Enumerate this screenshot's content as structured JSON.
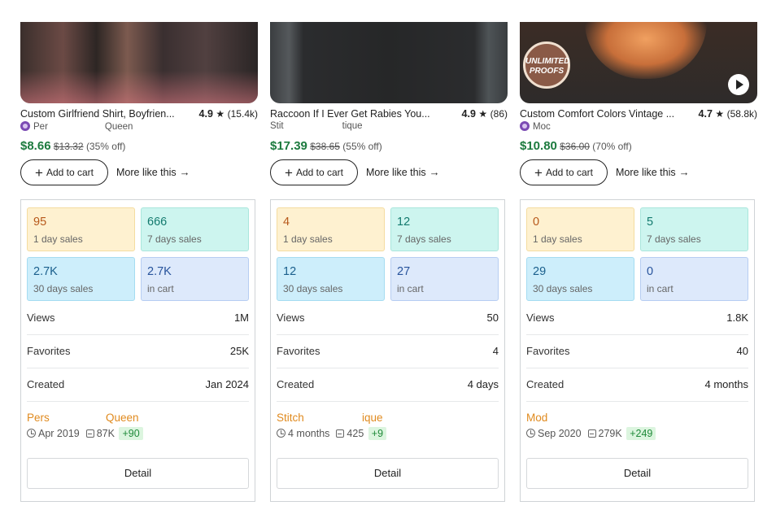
{
  "products": [
    {
      "title": "Custom Girlfriend Shirt, Boyfrien...",
      "rating": "4.9",
      "reviews": "(15.4k)",
      "shop_a": "Per",
      "shop_b": "Queen",
      "price": "$8.66",
      "original_price": "$13.32",
      "discount": "(35% off)",
      "add_to_cart": "Add to cart",
      "more_like_this": "More like this",
      "stats": {
        "day_sales": "95",
        "day_sales_label": "1 day sales",
        "week_sales": "666",
        "week_sales_label": "7 days sales",
        "month_sales": "2.7K",
        "month_sales_label": "30 days sales",
        "in_cart": "2.7K",
        "in_cart_label": "in cart"
      },
      "views_label": "Views",
      "views": "1M",
      "favorites_label": "Favorites",
      "favorites": "25K",
      "created_label": "Created",
      "created": "Jan 2024",
      "store_a": "Pers",
      "store_b": "Queen",
      "store_since": "Apr 2019",
      "store_sales": "87K",
      "store_growth": "+90",
      "detail": "Detail"
    },
    {
      "title": "Raccoon If I Ever Get Rabies You...",
      "rating": "4.9",
      "reviews": "(86)",
      "shop_a": "Stit",
      "shop_b": "tique",
      "price": "$17.39",
      "original_price": "$38.65",
      "discount": "(55% off)",
      "add_to_cart": "Add to cart",
      "more_like_this": "More like this",
      "stats": {
        "day_sales": "4",
        "day_sales_label": "1 day sales",
        "week_sales": "12",
        "week_sales_label": "7 days sales",
        "month_sales": "12",
        "month_sales_label": "30 days sales",
        "in_cart": "27",
        "in_cart_label": "in cart"
      },
      "views_label": "Views",
      "views": "50",
      "favorites_label": "Favorites",
      "favorites": "4",
      "created_label": "Created",
      "created": "4 days",
      "store_a": "Stitch",
      "store_b": "ique",
      "store_since": "4 months",
      "store_sales": "425",
      "store_growth": "+9",
      "detail": "Detail"
    },
    {
      "title": "Custom Comfort Colors Vintage ...",
      "rating": "4.7",
      "reviews": "(58.8k)",
      "shop_a": "Moc",
      "shop_b": "",
      "price": "$10.80",
      "original_price": "$36.00",
      "discount": "(70% off)",
      "add_to_cart": "Add to cart",
      "more_like_this": "More like this",
      "stats": {
        "day_sales": "0",
        "day_sales_label": "1 day sales",
        "week_sales": "5",
        "week_sales_label": "7 days sales",
        "month_sales": "29",
        "month_sales_label": "30 days sales",
        "in_cart": "0",
        "in_cart_label": "in cart"
      },
      "views_label": "Views",
      "views": "1.8K",
      "favorites_label": "Favorites",
      "favorites": "40",
      "created_label": "Created",
      "created": "4 months",
      "store_a": "Mod",
      "store_b": "",
      "store_since": "Sep 2020",
      "store_sales": "279K",
      "store_growth": "+249",
      "detail": "Detail",
      "image_badge": "UNLIMITED PROOFS"
    }
  ],
  "icons": {
    "star": "star-icon",
    "plus": "plus-icon",
    "arrow": "arrow-right-icon",
    "clock": "clock-icon",
    "bag": "shopping-bag-icon",
    "shop": "shop-badge-icon",
    "play": "play-icon"
  },
  "colors": {
    "price": "#1c7a3e",
    "store": "#e08a1e",
    "growth": "#1f8a39"
  }
}
